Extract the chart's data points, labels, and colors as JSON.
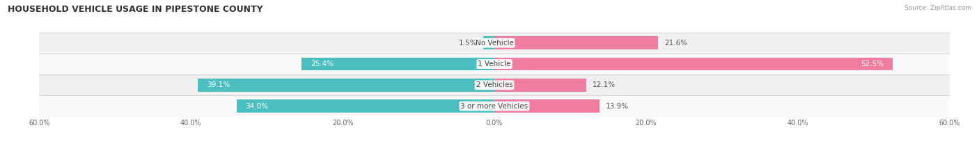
{
  "title": "HOUSEHOLD VEHICLE USAGE IN PIPESTONE COUNTY",
  "source": "Source: ZipAtlas.com",
  "categories": [
    "No Vehicle",
    "1 Vehicle",
    "2 Vehicles",
    "3 or more Vehicles"
  ],
  "owner_values": [
    1.5,
    25.4,
    39.1,
    34.0
  ],
  "renter_values": [
    21.6,
    52.5,
    12.1,
    13.9
  ],
  "owner_color": "#4bbfbf",
  "renter_color": "#f07ca0",
  "xlim": [
    -60,
    60
  ],
  "x_ticks": [
    -60,
    -40,
    -20,
    0,
    20,
    40,
    60
  ],
  "title_fontsize": 9,
  "label_fontsize": 7.5,
  "bar_height": 0.62,
  "row_bg_colors": [
    "#f0f0f0",
    "#fafafa",
    "#f0f0f0",
    "#fafafa"
  ]
}
